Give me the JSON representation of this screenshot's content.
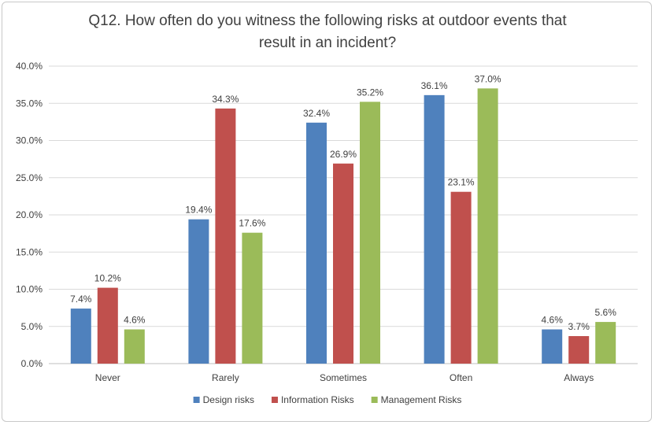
{
  "chart_data": {
    "type": "bar",
    "title_lines": [
      "Q12. How often do you witness the following risks at outdoor events that",
      "result in an incident?"
    ],
    "categories": [
      "Never",
      "Rarely",
      "Sometimes",
      "Often",
      "Always"
    ],
    "series": [
      {
        "name": "Design risks",
        "color": "#4f81bd",
        "values": [
          7.4,
          19.4,
          32.4,
          36.1,
          4.6
        ],
        "labels": [
          "7.4%",
          "19.4%",
          "32.4%",
          "36.1%",
          "4.6%"
        ]
      },
      {
        "name": "Information Risks",
        "color": "#c0504d",
        "values": [
          10.2,
          34.3,
          26.9,
          23.1,
          3.7
        ],
        "labels": [
          "10.2%",
          "34.3%",
          "26.9%",
          "23.1%",
          "3.7%"
        ]
      },
      {
        "name": "Management Risks",
        "color": "#9bbb59",
        "values": [
          4.6,
          17.6,
          35.2,
          37.0,
          5.6
        ],
        "labels": [
          "4.6%",
          "17.6%",
          "35.2%",
          "37.0%",
          "5.6%"
        ]
      }
    ],
    "ylim": [
      0,
      40
    ],
    "y_ticks": [
      0,
      5,
      10,
      15,
      20,
      25,
      30,
      35,
      40
    ],
    "y_tick_labels": [
      "0.0%",
      "5.0%",
      "10.0%",
      "15.0%",
      "20.0%",
      "25.0%",
      "30.0%",
      "35.0%",
      "40.0%"
    ],
    "grid": true,
    "legend_position": "bottom"
  }
}
